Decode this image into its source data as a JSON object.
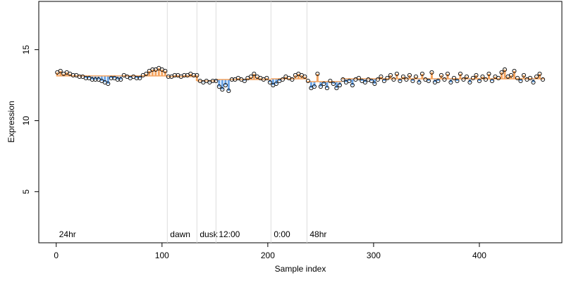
{
  "chart_data": {
    "type": "scatter",
    "x_label": "Sample index",
    "y_label": "Expression",
    "xlim": [
      -16.5,
      478
    ],
    "ylim": [
      1.4,
      18.4
    ],
    "xticks": [
      0,
      100,
      200,
      300,
      400
    ],
    "yticks": [
      5,
      10,
      15
    ],
    "point_color": "#000000",
    "above_color": "#f4a460",
    "below_color": "#6ca6e8",
    "guide_color": "#dddddd",
    "annotation_color": "#aaaaaa",
    "annotations": [
      {
        "label": "24hr",
        "x": 0,
        "line": false
      },
      {
        "label": "dawn",
        "x": 105,
        "line": true
      },
      {
        "label": "dusk",
        "x": 133,
        "line": true
      },
      {
        "label": "12:00",
        "x": 151,
        "line": true
      },
      {
        "label": "0:00",
        "x": 203,
        "line": true
      },
      {
        "label": "48hr",
        "x": 237,
        "line": true
      }
    ],
    "segments": [
      {
        "start": 0,
        "end": 105,
        "level": 13.15
      },
      {
        "start": 105,
        "end": 133,
        "level": 13.1
      },
      {
        "start": 133,
        "end": 151,
        "level": 12.8
      },
      {
        "start": 151,
        "end": 203,
        "level": 12.9
      },
      {
        "start": 203,
        "end": 237,
        "level": 12.95
      },
      {
        "start": 237,
        "end": 270,
        "level": 12.75
      },
      {
        "start": 270,
        "end": 461,
        "level": 12.95
      }
    ],
    "x": [
      1,
      4,
      7,
      10,
      13,
      16,
      19,
      22,
      25,
      28,
      31,
      34,
      37,
      40,
      43,
      46,
      49,
      52,
      55,
      58,
      61,
      64,
      67,
      70,
      73,
      76,
      79,
      82,
      85,
      88,
      91,
      94,
      97,
      100,
      103,
      106,
      109,
      112,
      115,
      118,
      121,
      124,
      127,
      130,
      133,
      136,
      139,
      142,
      145,
      148,
      151,
      154,
      157,
      160,
      163,
      166,
      169,
      172,
      175,
      178,
      181,
      184,
      187,
      190,
      193,
      196,
      199,
      202,
      205,
      208,
      211,
      214,
      217,
      220,
      223,
      226,
      229,
      232,
      235,
      238,
      241,
      244,
      247,
      250,
      253,
      256,
      259,
      262,
      265,
      268,
      271,
      274,
      277,
      280,
      283,
      286,
      289,
      292,
      295,
      298,
      301,
      304,
      307,
      310,
      313,
      316,
      319,
      322,
      325,
      328,
      331,
      334,
      337,
      340,
      343,
      346,
      349,
      352,
      355,
      358,
      361,
      364,
      367,
      370,
      373,
      376,
      379,
      382,
      385,
      388,
      391,
      394,
      397,
      400,
      403,
      406,
      409,
      412,
      415,
      418,
      421,
      424,
      427,
      430,
      433,
      436,
      439,
      442,
      445,
      448,
      451,
      454,
      457,
      460
    ],
    "values": [
      13.4,
      13.5,
      13.3,
      13.4,
      13.3,
      13.2,
      13.2,
      13.1,
      13.1,
      13.0,
      13.0,
      12.9,
      12.9,
      12.9,
      12.8,
      12.7,
      12.6,
      13.0,
      13.0,
      12.9,
      12.9,
      13.2,
      13.1,
      13.0,
      13.1,
      13.0,
      13.0,
      13.2,
      13.3,
      13.5,
      13.6,
      13.6,
      13.7,
      13.6,
      13.5,
      13.1,
      13.1,
      13.2,
      13.2,
      13.1,
      13.2,
      13.2,
      13.3,
      13.2,
      13.2,
      12.8,
      12.7,
      12.8,
      12.7,
      12.8,
      12.8,
      12.4,
      12.2,
      12.5,
      12.1,
      12.9,
      12.9,
      13.0,
      12.9,
      12.8,
      13.0,
      13.1,
      13.3,
      13.1,
      13.0,
      12.9,
      13.0,
      12.7,
      12.5,
      12.6,
      12.8,
      12.9,
      13.1,
      13.0,
      12.9,
      13.2,
      13.3,
      13.2,
      13.1,
      12.8,
      12.3,
      12.4,
      13.3,
      12.4,
      12.6,
      12.3,
      12.8,
      12.6,
      12.3,
      12.5,
      12.9,
      12.7,
      12.8,
      12.5,
      12.9,
      13.0,
      12.8,
      12.7,
      12.9,
      12.8,
      12.6,
      12.9,
      13.1,
      12.8,
      13.0,
      13.2,
      12.9,
      13.3,
      12.8,
      13.1,
      12.9,
      13.2,
      12.8,
      13.1,
      12.7,
      13.3,
      12.9,
      12.8,
      13.4,
      12.7,
      12.8,
      13.2,
      12.9,
      13.3,
      12.7,
      13.0,
      12.8,
      13.3,
      12.9,
      13.1,
      12.7,
      13.0,
      13.2,
      12.8,
      13.1,
      12.9,
      13.3,
      12.8,
      13.1,
      13.0,
      13.4,
      13.6,
      13.1,
      13.2,
      13.5,
      13.0,
      12.8,
      13.2,
      12.9,
      13.0,
      12.7,
      13.1,
      13.3,
      12.9
    ]
  }
}
